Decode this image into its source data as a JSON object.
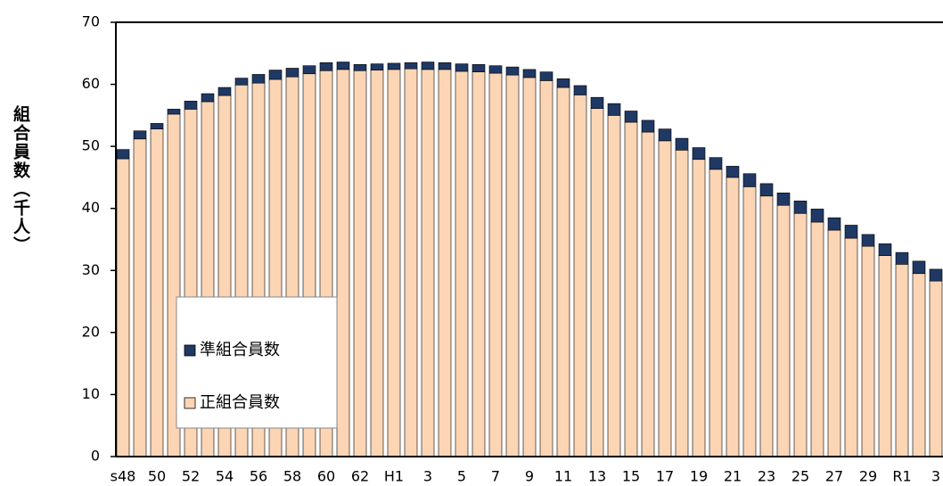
{
  "chart_data": {
    "type": "bar",
    "stacked": true,
    "y_label": "組合員数（千人）",
    "categories": [
      "s48",
      null,
      "50",
      null,
      "52",
      null,
      "54",
      null,
      "56",
      null,
      "58",
      null,
      "60",
      null,
      "62",
      null,
      "H1",
      null,
      "3",
      null,
      "5",
      null,
      "7",
      null,
      "9",
      null,
      "11",
      null,
      "13",
      null,
      "15",
      null,
      "17",
      null,
      "19",
      null,
      "21",
      null,
      "23",
      null,
      "25",
      null,
      "27",
      null,
      "29",
      null,
      "R1",
      null,
      "3"
    ],
    "series": [
      {
        "name": "正組合員数",
        "color": "#fcd5b5",
        "values": [
          48.0,
          51.2,
          52.8,
          55.2,
          56.0,
          57.2,
          58.2,
          59.9,
          60.2,
          60.8,
          61.2,
          61.7,
          62.2,
          62.4,
          62.2,
          62.3,
          62.4,
          62.5,
          62.4,
          62.4,
          62.1,
          62.0,
          61.8,
          61.5,
          61.1,
          60.6,
          59.5,
          58.3,
          56.1,
          55.0,
          53.9,
          52.3,
          50.9,
          49.4,
          47.9,
          46.3,
          45.0,
          43.5,
          42.0,
          40.5,
          39.2,
          37.8,
          36.5,
          35.2,
          33.9,
          32.4,
          31.0,
          29.5,
          28.3
        ]
      },
      {
        "name": "準組合員数",
        "color": "#1f3864",
        "values": [
          1.5,
          1.3,
          0.9,
          0.8,
          1.3,
          1.3,
          1.3,
          1.1,
          1.4,
          1.5,
          1.4,
          1.3,
          1.3,
          1.2,
          1.0,
          1.0,
          1.0,
          1.0,
          1.2,
          1.1,
          1.2,
          1.2,
          1.2,
          1.3,
          1.3,
          1.4,
          1.4,
          1.5,
          1.8,
          1.9,
          1.8,
          1.9,
          1.9,
          1.9,
          1.9,
          1.9,
          1.8,
          2.1,
          2.0,
          2.0,
          2.0,
          2.1,
          2.0,
          2.1,
          1.9,
          1.9,
          1.9,
          2.0,
          1.9
        ]
      }
    ],
    "ylim": [
      0,
      70
    ],
    "yticks": [
      0,
      10,
      20,
      30,
      40,
      50,
      60,
      70
    ],
    "legend": "lower-left"
  }
}
